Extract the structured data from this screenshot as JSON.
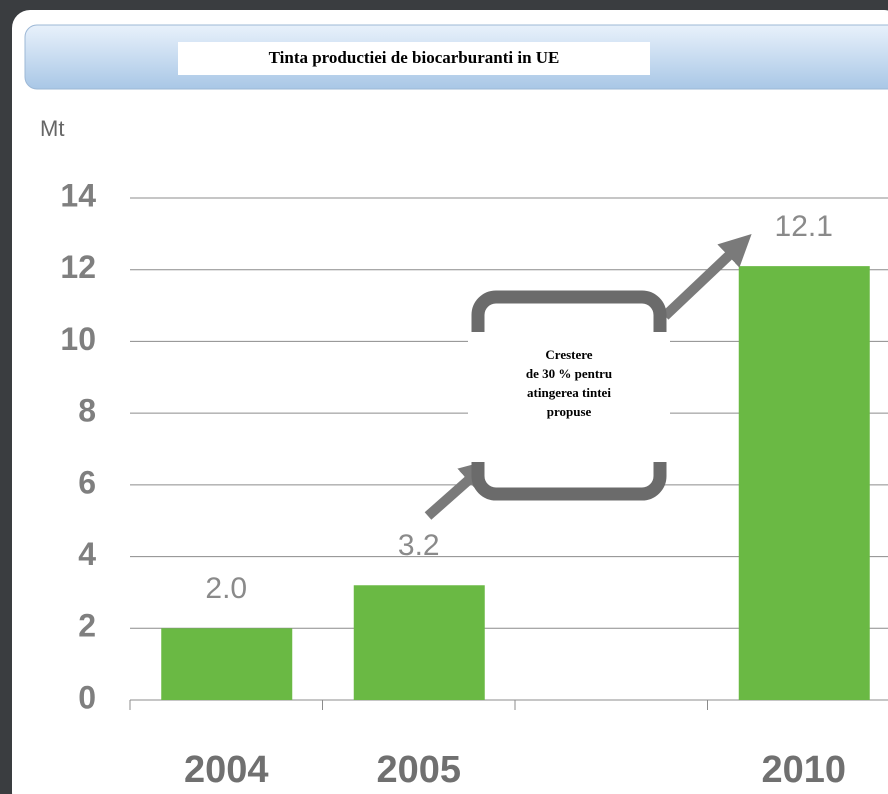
{
  "chart_data": {
    "type": "bar",
    "title": "Tinta productiei de biocarburanti in UE",
    "y_label": "Mt",
    "categories": [
      "2004",
      "2005",
      null,
      "2010"
    ],
    "values": [
      2.0,
      3.2,
      null,
      12.1
    ],
    "value_labels": [
      "2.0",
      "3.2",
      null,
      "12.1"
    ],
    "color": "#6ab944",
    "ylim": [
      0,
      14
    ],
    "yticks": [
      0,
      2,
      4,
      6,
      8,
      10,
      12,
      14
    ],
    "grid": true,
    "annotation": [
      "Crestere",
      "de 30 % pentru",
      "atingerea tintei",
      "propuse"
    ]
  }
}
